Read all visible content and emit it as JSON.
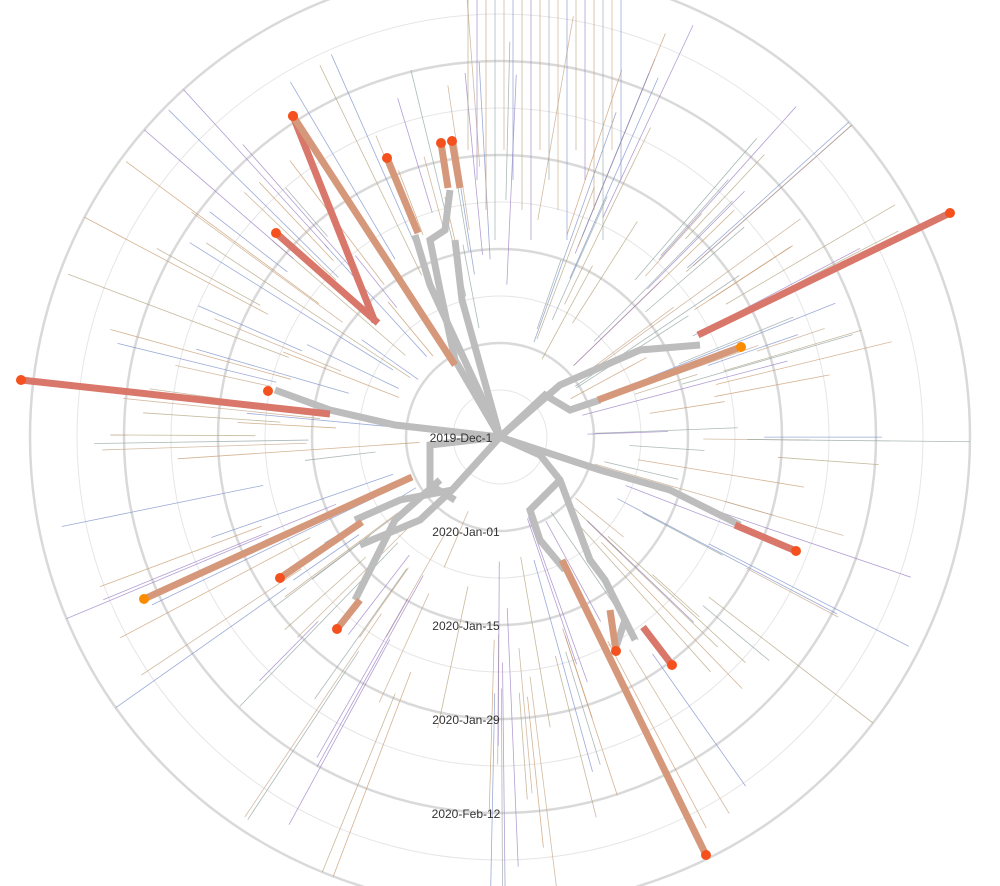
{
  "tree": {
    "time_labels": [
      "2019-Dec-1",
      "2020-Jan-01",
      "2020-Jan-15",
      "2020-Jan-29",
      "2020-Feb-12"
    ],
    "colors": {
      "trunk": "#bdbdbd",
      "ring": "#d9d9d9",
      "tip_red": "#f4511e",
      "tip_orange": "#fb8c00",
      "branch_red": "#d9776a",
      "branch_orange": "#d6987a",
      "thin_palette": [
        "#7b8fc9",
        "#b3a37d",
        "#9a7fc4",
        "#c79a6e",
        "#8fa3a0",
        "#c4a484"
      ]
    }
  }
}
